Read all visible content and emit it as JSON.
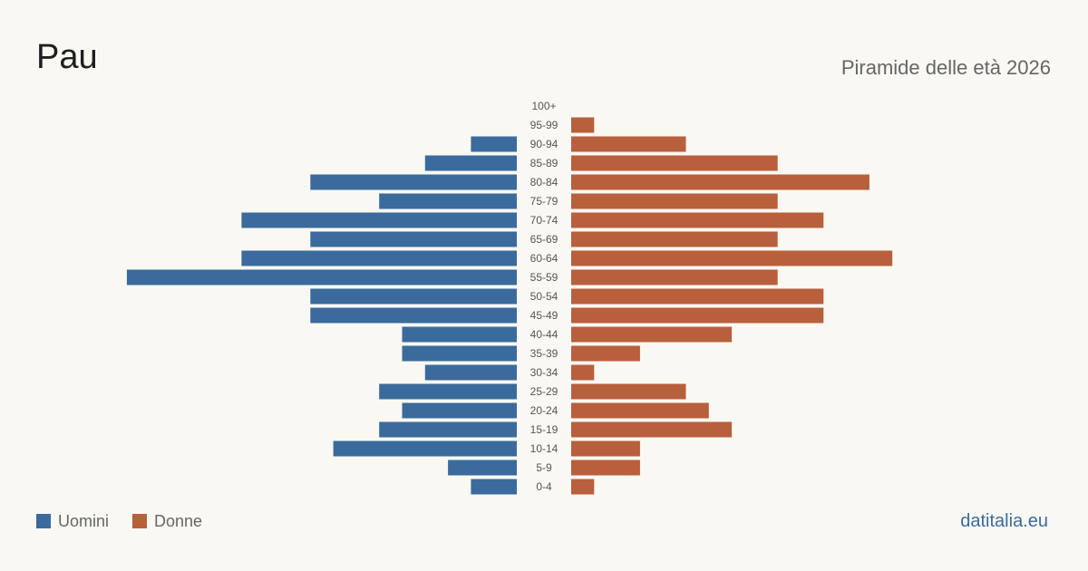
{
  "header": {
    "title": "Pau",
    "subtitle": "Piramide delle età 2026"
  },
  "legend": {
    "men_label": "Uomini",
    "women_label": "Donne"
  },
  "source": "datitalia.eu",
  "colors": {
    "men": "#3a6b9c",
    "women": "#b85f3c",
    "background": "#faf8f3"
  },
  "chart_data": {
    "type": "bar",
    "orientation": "horizontal-pyramid",
    "title": "Pau",
    "subtitle": "Piramide delle età 2026",
    "categories": [
      "100+",
      "95-99",
      "90-94",
      "85-89",
      "80-84",
      "75-79",
      "70-74",
      "65-69",
      "60-64",
      "55-59",
      "50-54",
      "45-49",
      "40-44",
      "35-39",
      "30-34",
      "25-29",
      "20-24",
      "15-19",
      "10-14",
      "5-9",
      "0-4"
    ],
    "series": [
      {
        "name": "Uomini",
        "color": "#3a6b9c",
        "values": [
          0,
          0,
          2,
          4,
          9,
          6,
          12,
          9,
          12,
          17,
          9,
          9,
          5,
          5,
          4,
          6,
          5,
          6,
          8,
          3,
          2
        ]
      },
      {
        "name": "Donne",
        "color": "#b85f3c",
        "values": [
          0,
          1,
          5,
          9,
          13,
          9,
          11,
          9,
          14,
          9,
          11,
          11,
          7,
          3,
          1,
          5,
          6,
          7,
          3,
          3,
          1
        ]
      }
    ],
    "legend_position": "bottom-left",
    "grid": false
  }
}
